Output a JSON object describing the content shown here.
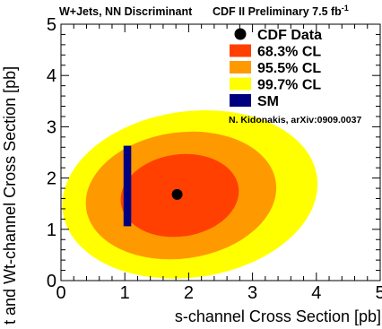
{
  "chart_data": {
    "type": "contour",
    "title": "W+Jets, NN Discriminant",
    "header_right": "CDF II Preliminary 7.5 fb",
    "header_right_sup": "-1",
    "xlabel": "s-channel Cross Section [pb]",
    "ylabel": "t and Wt-channel Cross Section [pb]",
    "xlim": [
      0,
      5
    ],
    "ylim": [
      0,
      5
    ],
    "xticks": [
      "0",
      "1",
      "2",
      "3",
      "4",
      "5"
    ],
    "yticks": [
      "0",
      "1",
      "2",
      "3",
      "4",
      "5"
    ],
    "grid": false,
    "legend_position": "top-right",
    "data_point": {
      "name": "CDF Data",
      "x": 1.82,
      "y": 1.68,
      "color": "#000000"
    },
    "contours": [
      {
        "name": "99.7% CL",
        "color": "#ffff00",
        "center": [
          2.02,
          1.68
        ],
        "half_width": 2.01,
        "half_height": 1.62
      },
      {
        "name": "95.5% CL",
        "color": "#ff9900",
        "center": [
          1.88,
          1.66
        ],
        "half_width": 1.5,
        "half_height": 1.23
      },
      {
        "name": "68.3% CL",
        "color": "#ff4000",
        "center": [
          1.86,
          1.66
        ],
        "half_width": 0.93,
        "half_height": 0.8
      }
    ],
    "sm_prediction": {
      "name": "SM",
      "color": "#000080",
      "x": [
        0.98,
        1.1
      ],
      "y": [
        1.06,
        2.63
      ]
    },
    "annotation": "N. Kidonakis, arXiv:0909.0037",
    "legend": [
      {
        "label": "CDF Data",
        "marker": "dot",
        "color": "#000000"
      },
      {
        "label": "68.3% CL",
        "marker": "box",
        "color": "#ff4000"
      },
      {
        "label": "95.5% CL",
        "marker": "box",
        "color": "#ff9900"
      },
      {
        "label": "99.7% CL",
        "marker": "box",
        "color": "#ffff00"
      },
      {
        "label": "SM",
        "marker": "box",
        "color": "#000080"
      }
    ]
  }
}
